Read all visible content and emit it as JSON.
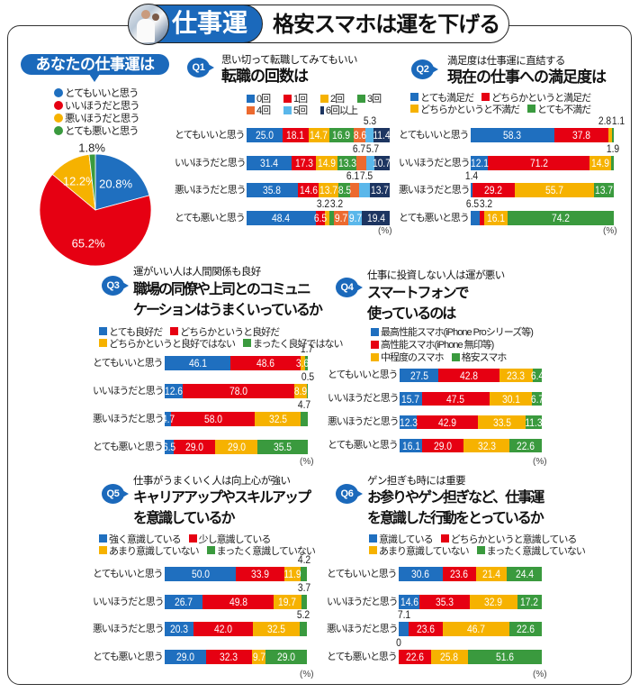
{
  "header": {
    "badge_label": "仕事運",
    "title": "格安スマホは運を下げる",
    "photo": "office-workers-photo"
  },
  "chart_data": [
    {
      "type": "pie",
      "title": "あなたの仕事運は",
      "labels": [
        "とてもいいと思う",
        "いいほうだと思う",
        "悪いほうだと思う",
        "とても悪いと思う"
      ],
      "values": [
        20.8,
        65.2,
        12.2,
        1.8
      ],
      "colors": [
        "#1f6fbf",
        "#e60012",
        "#f6b200",
        "#3a9a3e"
      ],
      "value_suffix": "%",
      "direction": "clockwise from top",
      "outside_labels": [
        3
      ]
    },
    {
      "type": "bar",
      "stacked": true,
      "orientation": "horizontal",
      "badge": "Q1",
      "subtitle": "思い切って転職してみてもいい",
      "title_lines": [
        "転職の回数は"
      ],
      "categories": [
        "とてもいいと思う",
        "いいほうだと思う",
        "悪いほうだと思う",
        "とても悪いと思う"
      ],
      "xlim": [
        0,
        100
      ],
      "unit": "(%)",
      "series": [
        {
          "name": "0回",
          "color": "#1f6fbf",
          "values": [
            25.0,
            31.4,
            35.8,
            48.4
          ]
        },
        {
          "name": "1回",
          "color": "#e60012",
          "values": [
            18.1,
            17.3,
            14.6,
            6.5
          ]
        },
        {
          "name": "2回",
          "color": "#f6b200",
          "values": [
            14.7,
            14.9,
            13.7,
            3.2
          ]
        },
        {
          "name": "3回",
          "color": "#3a9a3e",
          "values": [
            16.9,
            13.3,
            8.5,
            3.2
          ]
        },
        {
          "name": "4回",
          "color": "#ec6a2f",
          "values": [
            8.6,
            6.7,
            6.1,
            9.7
          ]
        },
        {
          "name": "5回",
          "color": "#5ab7ea",
          "values": [
            5.3,
            5.7,
            7.5,
            9.7
          ]
        },
        {
          "name": "6回以上",
          "color": "#1d3561",
          "values": [
            11.4,
            10.7,
            13.7,
            19.4
          ]
        }
      ],
      "labels_above": [
        [
          5
        ],
        [
          4,
          5
        ],
        [
          4,
          5
        ],
        [
          2,
          3
        ]
      ]
    },
    {
      "type": "bar",
      "stacked": true,
      "orientation": "horizontal",
      "badge": "Q2",
      "subtitle": "満足度は仕事運に直結する",
      "title_lines": [
        "現在の仕事への満足度は"
      ],
      "categories": [
        "とてもいいと思う",
        "いいほうだと思う",
        "悪いほうだと思う",
        "とても悪いと思う"
      ],
      "xlim": [
        0,
        100
      ],
      "unit": "(%)",
      "series": [
        {
          "name": "とても満足だ",
          "color": "#1f6fbf",
          "values": [
            58.3,
            12.1,
            1.4,
            6.5
          ]
        },
        {
          "name": "どちらかというと満足だ",
          "color": "#e60012",
          "values": [
            37.8,
            71.2,
            29.2,
            3.2
          ]
        },
        {
          "name": "どちらかというと不満だ",
          "color": "#f6b200",
          "values": [
            2.8,
            14.9,
            55.7,
            16.1
          ]
        },
        {
          "name": "とても不満だ",
          "color": "#3a9a3e",
          "values": [
            1.1,
            1.9,
            13.7,
            74.2
          ]
        }
      ],
      "labels_above": [
        [
          2,
          3
        ],
        [
          3
        ],
        [
          0
        ],
        [
          0,
          1
        ]
      ]
    },
    {
      "type": "bar",
      "stacked": true,
      "orientation": "horizontal",
      "badge": "Q3",
      "subtitle": "運がいい人は人間関係も良好",
      "title_lines": [
        "職場の同僚や上司とのコミュニ",
        "ケーションはうまくいっているか"
      ],
      "categories": [
        "とてもいいと思う",
        "いいほうだと思う",
        "悪いほうだと思う",
        "とても悪いと思う"
      ],
      "xlim": [
        0,
        100
      ],
      "unit": "(%)",
      "series": [
        {
          "name": "とても良好だ",
          "color": "#1f6fbf",
          "values": [
            46.1,
            12.6,
            4.7,
            6.5
          ]
        },
        {
          "name": "どちらかというと良好だ",
          "color": "#e60012",
          "values": [
            48.6,
            78.0,
            58.0,
            29.0
          ]
        },
        {
          "name": "どちらかというと良好ではない",
          "color": "#f6b200",
          "values": [
            3.6,
            8.9,
            32.5,
            29.0
          ]
        },
        {
          "name": "まったく良好ではない",
          "color": "#3a9a3e",
          "values": [
            1.7,
            0.5,
            4.7,
            35.5
          ]
        }
      ],
      "labels_above": [
        [
          3
        ],
        [
          3
        ],
        [
          3
        ],
        []
      ]
    },
    {
      "type": "bar",
      "stacked": true,
      "orientation": "horizontal",
      "badge": "Q4",
      "subtitle": "仕事に投資しない人は運が悪い",
      "title_lines": [
        "スマートフォンで",
        "使っているのは"
      ],
      "categories": [
        "とてもいいと思う",
        "いいほうだと思う",
        "悪いほうだと思う",
        "とても悪いと思う"
      ],
      "xlim": [
        0,
        100
      ],
      "unit": "(%)",
      "series": [
        {
          "name": "最高性能スマホ(iPhone Proシリーズ等)",
          "color": "#1f6fbf",
          "values": [
            27.5,
            15.7,
            12.3,
            16.1
          ]
        },
        {
          "name": "高性能スマホ(iPhone 無印等)",
          "color": "#e60012",
          "values": [
            42.8,
            47.5,
            42.9,
            29.0
          ]
        },
        {
          "name": "中程度のスマホ",
          "color": "#f6b200",
          "values": [
            23.3,
            30.1,
            33.5,
            32.3
          ]
        },
        {
          "name": "格安スマホ",
          "color": "#3a9a3e",
          "values": [
            6.4,
            6.7,
            11.3,
            22.6
          ]
        }
      ],
      "labels_above": [
        [],
        [],
        [],
        []
      ]
    },
    {
      "type": "bar",
      "stacked": true,
      "orientation": "horizontal",
      "badge": "Q5",
      "subtitle": "仕事がうまくいく人は向上心が強い",
      "title_lines": [
        "キャリアアップやスキルアップ",
        "を意識しているか"
      ],
      "categories": [
        "とてもいいと思う",
        "いいほうだと思う",
        "悪いほうだと思う",
        "とても悪いと思う"
      ],
      "xlim": [
        0,
        100
      ],
      "unit": "(%)",
      "series": [
        {
          "name": "強く意識している",
          "color": "#1f6fbf",
          "values": [
            50.0,
            26.7,
            20.3,
            29.0
          ]
        },
        {
          "name": "少し意識している",
          "color": "#e60012",
          "values": [
            33.9,
            49.8,
            42.0,
            32.3
          ]
        },
        {
          "name": "あまり意識していない",
          "color": "#f6b200",
          "values": [
            11.9,
            19.7,
            32.5,
            9.7
          ]
        },
        {
          "name": "まったく意識していない",
          "color": "#3a9a3e",
          "values": [
            4.2,
            3.7,
            5.2,
            29.0
          ]
        }
      ],
      "labels_above": [
        [
          3
        ],
        [
          3
        ],
        [
          3
        ],
        []
      ]
    },
    {
      "type": "bar",
      "stacked": true,
      "orientation": "horizontal",
      "badge": "Q6",
      "subtitle": "ゲン担ぎも時には重要",
      "title_lines": [
        "お参りやゲン担ぎなど、仕事運",
        "を意識した行動をとっているか"
      ],
      "categories": [
        "とてもいいと思う",
        "いいほうだと思う",
        "悪いほうだと思う",
        "とても悪いと思う"
      ],
      "xlim": [
        0,
        100
      ],
      "unit": "(%)",
      "series": [
        {
          "name": "意識している",
          "color": "#1f6fbf",
          "values": [
            30.6,
            14.6,
            7.1,
            0
          ]
        },
        {
          "name": "どちらかというと意識している",
          "color": "#e60012",
          "values": [
            23.6,
            35.3,
            23.6,
            22.6
          ]
        },
        {
          "name": "あまり意識していない",
          "color": "#f6b200",
          "values": [
            21.4,
            32.9,
            46.7,
            25.8
          ]
        },
        {
          "name": "まったく意識していない",
          "color": "#3a9a3e",
          "values": [
            24.4,
            17.2,
            22.6,
            51.6
          ]
        }
      ],
      "labels_above": [
        [],
        [],
        [
          0
        ],
        [
          0
        ]
      ]
    }
  ]
}
